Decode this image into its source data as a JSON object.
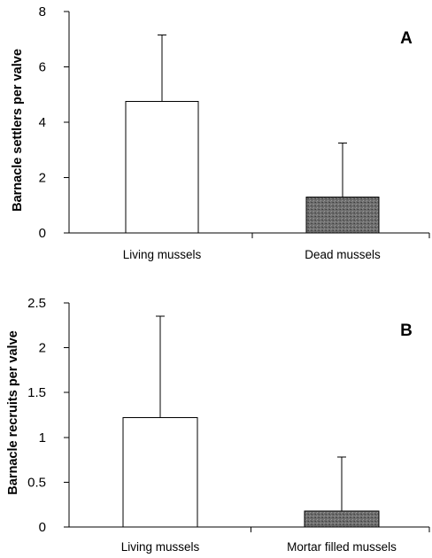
{
  "chart_data": [
    {
      "type": "bar",
      "panel_label": "A",
      "ylabel": "Barnacle settlers per valve",
      "xlabel": "",
      "ylim": [
        0,
        8
      ],
      "yticks": [
        "0",
        "2",
        "4",
        "6",
        "8"
      ],
      "categories": [
        "Living mussels",
        "Dead mussels"
      ],
      "values": [
        4.75,
        1.3
      ],
      "error_upper": [
        7.15,
        3.25
      ],
      "bar_colors": [
        "#ffffff",
        "#6e6e6e"
      ],
      "grid": false
    },
    {
      "type": "bar",
      "panel_label": "B",
      "ylabel": "Barnacle recruits per valve",
      "xlabel": "",
      "ylim": [
        0,
        2.5
      ],
      "yticks": [
        "0",
        "0.5",
        "1",
        "1.5",
        "2",
        "2.5"
      ],
      "categories": [
        "Living mussels",
        "Mortar filled mussels"
      ],
      "values": [
        1.22,
        0.18
      ],
      "error_upper": [
        2.35,
        0.78
      ],
      "bar_colors": [
        "#ffffff",
        "#6e6e6e"
      ],
      "grid": false
    }
  ]
}
